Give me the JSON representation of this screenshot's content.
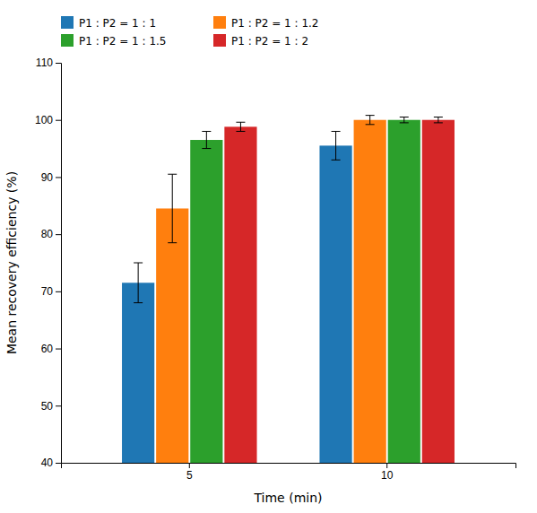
{
  "chart_data": {
    "type": "bar",
    "xlabel": "Time (min)",
    "ylabel": "Mean recovery efficiency (%)",
    "categories": [
      "5",
      "10"
    ],
    "series": [
      {
        "name": "P1 : P2 = 1 : 1",
        "values": [
          71.5,
          95.5
        ],
        "errors": [
          3.5,
          2.5
        ]
      },
      {
        "name": "P1 : P2 = 1 : 1.2",
        "values": [
          84.5,
          100.0
        ],
        "errors": [
          6.0,
          0.8
        ]
      },
      {
        "name": "P1 : P2 = 1 : 1.5",
        "values": [
          96.5,
          100.0
        ],
        "errors": [
          1.5,
          0.5
        ]
      },
      {
        "name": "P1 : P2 = 1 : 2",
        "values": [
          98.8,
          100.0
        ],
        "errors": [
          0.8,
          0.5
        ]
      }
    ],
    "ylim": [
      40,
      110
    ],
    "yticks": [
      40,
      50,
      60,
      70,
      80,
      90,
      100,
      110
    ],
    "legend": "upper left",
    "grid": false
  }
}
